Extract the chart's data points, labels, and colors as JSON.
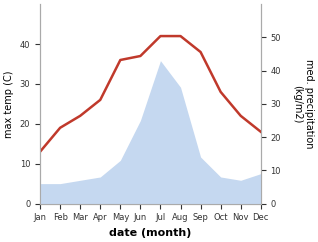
{
  "months": [
    "Jan",
    "Feb",
    "Mar",
    "Apr",
    "May",
    "Jun",
    "Jul",
    "Aug",
    "Sep",
    "Oct",
    "Nov",
    "Dec"
  ],
  "temperature": [
    13,
    19,
    22,
    26,
    36,
    37,
    42,
    42,
    38,
    28,
    22,
    18
  ],
  "precipitation": [
    6,
    6,
    7,
    8,
    13,
    25,
    43,
    35,
    14,
    8,
    7,
    9
  ],
  "temp_color": "#c0392b",
  "precip_color": "#c5d8f0",
  "ylabel_left": "max temp (C)",
  "ylabel_right": "med. precipitation\n(kg/m2)",
  "xlabel": "date (month)",
  "ylim_left": [
    0,
    50
  ],
  "ylim_right": [
    0,
    60
  ],
  "yticks_left": [
    0,
    10,
    20,
    30,
    40
  ],
  "yticks_right": [
    0,
    10,
    20,
    30,
    40,
    50
  ],
  "background_color": "#ffffff",
  "temp_linewidth": 1.8,
  "xlabel_fontsize": 8,
  "ylabel_fontsize": 7,
  "tick_fontsize": 6
}
